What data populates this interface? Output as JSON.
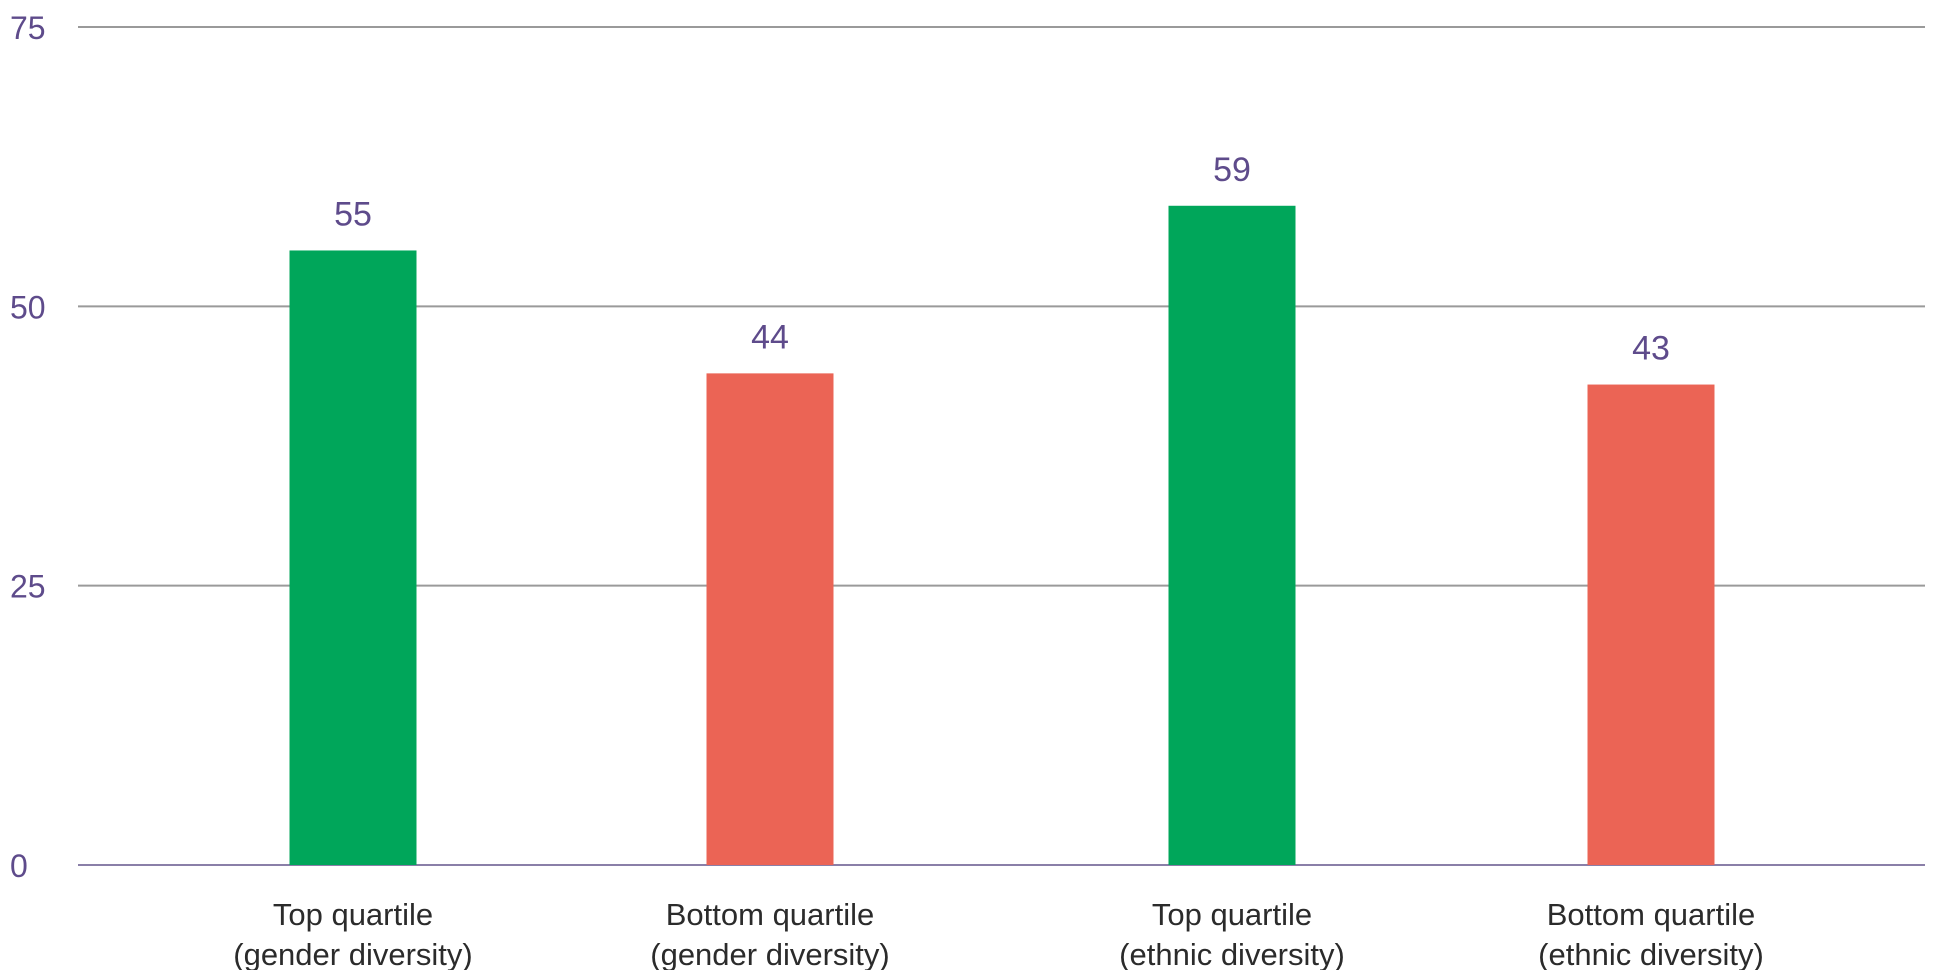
{
  "chart_data": {
    "type": "bar",
    "categories": [
      [
        "Top quartile",
        "(gender diversity)"
      ],
      [
        "Bottom quartile",
        "(gender diversity)"
      ],
      [
        "Top quartile",
        "(ethnic diversity)"
      ],
      [
        "Bottom quartile",
        "(ethnic diversity)"
      ]
    ],
    "values": [
      55,
      44,
      59,
      43
    ],
    "data_labels": [
      "55",
      "44",
      "59",
      "43"
    ],
    "bar_colors": [
      "#00a65a",
      "#eb6455",
      "#00a65a",
      "#eb6455"
    ],
    "ylim": [
      0,
      75
    ],
    "yticks": [
      0,
      25,
      50,
      75
    ],
    "ytick_labels": [
      "0",
      "25",
      "50",
      "75"
    ],
    "grid": true,
    "title": "",
    "xlabel": "",
    "ylabel": ""
  }
}
